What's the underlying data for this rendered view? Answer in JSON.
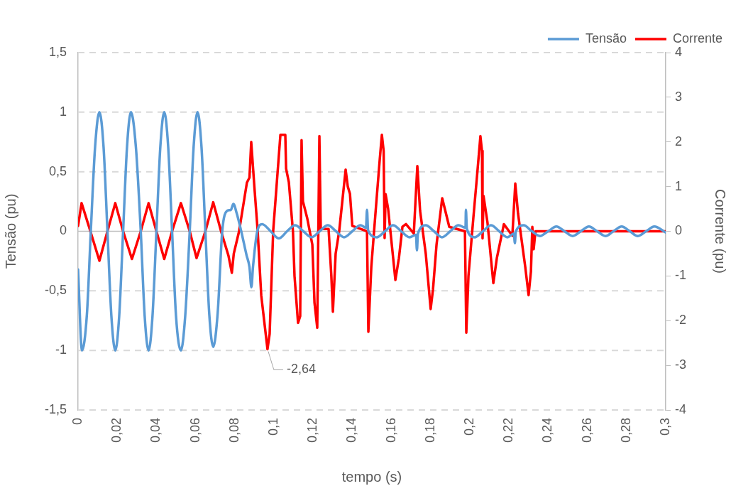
{
  "chart_data": {
    "type": "line",
    "xlabel": "tempo (s)",
    "ylabel": "Tensão (pu)",
    "y2label": "Corrente (pu)",
    "xlim": [
      0,
      0.3
    ],
    "xticks": [
      0,
      {
        "value": 0.02,
        "label": "0,02"
      },
      {
        "value": 0.04,
        "label": "0,04"
      },
      {
        "value": 0.06,
        "label": "0,06"
      },
      {
        "value": 0.08,
        "label": "0,08"
      },
      {
        "value": 0.1,
        "label": "0,1"
      },
      {
        "value": 0.12,
        "label": "0,12"
      },
      {
        "value": 0.14,
        "label": "0,14"
      },
      {
        "value": 0.16,
        "label": "0,16"
      },
      {
        "value": 0.18,
        "label": "0,18"
      },
      {
        "value": 0.2,
        "label": "0,2"
      },
      {
        "value": 0.22,
        "label": "0,22"
      },
      {
        "value": 0.24,
        "label": "0,24"
      },
      {
        "value": 0.26,
        "label": "0,26"
      },
      {
        "value": 0.28,
        "label": "0,28"
      },
      {
        "value": 0.3,
        "label": "0,3"
      }
    ],
    "ylim": [
      -1.5,
      1.5
    ],
    "yticks": [
      {
        "value": -1.5,
        "label": "-1,5"
      },
      -1,
      {
        "value": -0.5,
        "label": "-0,5"
      },
      0,
      {
        "value": 0.5,
        "label": "0,5"
      },
      1,
      {
        "value": 1.5,
        "label": "1,5"
      }
    ],
    "y2lim": [
      -4,
      4
    ],
    "y2ticks": [
      -4,
      -3,
      -2,
      -1,
      0,
      1,
      2,
      3,
      4
    ],
    "grid": "y",
    "legend": "top right",
    "marker": "none",
    "line_style": "solid",
    "series": [
      {
        "name": "Tensão",
        "color": "#5b9bd5",
        "x": [
          0,
          0.002,
          0.0045,
          0.0065,
          0.0087,
          0.0109,
          0.013,
          0.015,
          0.017,
          0.019,
          0.021,
          0.023,
          0.025,
          0.027,
          0.0295,
          0.032,
          0.034,
          0.036,
          0.038,
          0.04,
          0.042,
          0.044,
          0.046,
          0.048,
          0.05,
          0.0525,
          0.0547,
          0.057,
          0.059,
          0.061,
          0.063,
          0.065,
          0.067,
          0.069,
          0.0713,
          0.0736,
          0.076,
          0.078,
          0.0793,
          0.081,
          0.0833,
          0.086,
          0.0875,
          0.0885,
          0.0893,
          0.0915,
          0.094,
          0.0983,
          0.1025,
          0.1067,
          0.1108,
          0.115,
          0.1192,
          0.1233,
          0.1275,
          0.1317,
          0.1358,
          0.14,
          0.1442,
          0.147,
          0.1475,
          0.148,
          0.1483,
          0.1525,
          0.1567,
          0.1608,
          0.165,
          0.1692,
          0.1725,
          0.173,
          0.1735,
          0.1775,
          0.1817,
          0.1858,
          0.19,
          0.1942,
          0.1978,
          0.198,
          0.1985,
          0.2025,
          0.2067,
          0.2108,
          0.215,
          0.2192,
          0.2225,
          0.223,
          0.2235,
          0.2275,
          0.2317,
          0.2358,
          0.24,
          0.2442,
          0.2483,
          0.2525,
          0.2567,
          0.2608,
          0.265,
          0.2692,
          0.2733,
          0.2775,
          0.2817,
          0.2858,
          0.29,
          0.2942,
          0.3
        ],
        "values": [
          -0.32,
          -1.0,
          -0.7,
          0,
          0.71,
          1.0,
          0.71,
          0,
          -0.71,
          -1.0,
          -0.71,
          0,
          0.71,
          1.0,
          0.71,
          0,
          -0.71,
          -1.0,
          -0.71,
          0,
          0.71,
          1.0,
          0.71,
          0,
          -0.71,
          -1.0,
          -0.71,
          0,
          0.71,
          1.0,
          0.71,
          0,
          -0.7,
          -0.97,
          -0.68,
          0,
          0.17,
          0.18,
          0.23,
          0.15,
          0,
          -0.2,
          -0.3,
          -0.47,
          -0.3,
          0,
          0.06,
          0,
          -0.06,
          0,
          0.05,
          0,
          -0.05,
          0,
          0.05,
          0,
          -0.05,
          0,
          0.05,
          0.03,
          0.18,
          0.02,
          0,
          -0.05,
          0,
          0.05,
          0,
          -0.05,
          -0.03,
          -0.16,
          -0.02,
          0.05,
          0,
          -0.05,
          0,
          0.05,
          0.03,
          0.18,
          0.02,
          -0.05,
          0,
          0.05,
          0,
          -0.05,
          -0.02,
          -0.1,
          0,
          0.05,
          0,
          -0.04,
          0,
          0.04,
          0,
          -0.04,
          0,
          0.04,
          0,
          -0.04,
          0,
          0.04,
          0,
          -0.04,
          0,
          0.04,
          -0.01
        ]
      },
      {
        "name": "Corrente",
        "color": "#ff0000",
        "axis": "y2",
        "x": [
          0,
          0.0018,
          0.0063,
          0.0109,
          0.015,
          0.019,
          0.023,
          0.0275,
          0.032,
          0.036,
          0.04,
          0.044,
          0.048,
          0.0525,
          0.057,
          0.0605,
          0.065,
          0.069,
          0.073,
          0.0768,
          0.0785,
          0.0795,
          0.0822,
          0.0862,
          0.0875,
          0.0884,
          0.09,
          0.0917,
          0.0935,
          0.095,
          0.0967,
          0.0978,
          0.0996,
          0.1033,
          0.1058,
          0.1062,
          0.1076,
          0.1097,
          0.1105,
          0.1123,
          0.1134,
          0.1141,
          0.1148,
          0.117,
          0.1196,
          0.1207,
          0.1221,
          0.1232,
          0.1239,
          0.1279,
          0.1293,
          0.1301,
          0.1315,
          0.1333,
          0.1366,
          0.1377,
          0.1388,
          0.14,
          0.1475,
          0.1482,
          0.1497,
          0.152,
          0.154,
          0.1551,
          0.156,
          0.1565,
          0.157,
          0.1583,
          0.162,
          0.1638,
          0.1656,
          0.1674,
          0.1714,
          0.1732,
          0.1746,
          0.1775,
          0.18,
          0.1812,
          0.183,
          0.1859,
          0.1895,
          0.1975,
          0.1982,
          0.1993,
          0.2018,
          0.204,
          0.2054,
          0.2062,
          0.2065,
          0.207,
          0.209,
          0.212,
          0.2138,
          0.2174,
          0.2217,
          0.2232,
          0.2246,
          0.2283,
          0.23,
          0.2312,
          0.2319,
          0.2326,
          0.2335,
          0.26,
          0.3
        ],
        "values": [
          0.12,
          0.63,
          0,
          -0.66,
          0,
          0.63,
          0,
          -0.62,
          0,
          0.63,
          0,
          -0.62,
          0,
          0.63,
          0,
          -0.6,
          0,
          0.65,
          0,
          -0.55,
          -0.93,
          -0.5,
          0,
          1.09,
          1.2,
          2.0,
          1.0,
          0,
          -1.43,
          -2.0,
          -2.64,
          -2.3,
          0,
          2.16,
          2.16,
          1.4,
          1.1,
          0,
          -1.0,
          -2.05,
          -1.9,
          2.04,
          0.67,
          0.29,
          -0.3,
          -1.6,
          -2.16,
          2.13,
          0.05,
          0.05,
          -1.0,
          -1.8,
          -0.5,
          0,
          1.38,
          1.0,
          0.84,
          0.12,
          0,
          -2.25,
          -0.8,
          0.5,
          1.6,
          2.16,
          1.8,
          -0.15,
          0.83,
          0.5,
          -1.09,
          -0.6,
          0.1,
          0.16,
          -0.05,
          1.46,
          0.46,
          -0.5,
          -1.74,
          -1.3,
          -0.3,
          0.74,
          0.1,
          0,
          -2.27,
          -1.0,
          0.3,
          1.4,
          2.13,
          1.8,
          -0.16,
          0.79,
          0.2,
          -1.16,
          -0.6,
          0.16,
          -0.1,
          1.07,
          0.4,
          -0.8,
          -1.43,
          -0.9,
          0.1,
          -0.4,
          0,
          0,
          0
        ],
        "value_labels": [
          null,
          null,
          null,
          null,
          null,
          null,
          null,
          null,
          null,
          null,
          null,
          null,
          null,
          null,
          null,
          null,
          null,
          null,
          null,
          null,
          null,
          null,
          null,
          null,
          null,
          null,
          null,
          null,
          null,
          null,
          "-2,64",
          null,
          null,
          null,
          null,
          null,
          null,
          null,
          null,
          null,
          null,
          null,
          null,
          null,
          null,
          null,
          null,
          null,
          null,
          null,
          null,
          null,
          null,
          null,
          null,
          null,
          null,
          null,
          null,
          null,
          null,
          null,
          null,
          null,
          null,
          null,
          null,
          null,
          null,
          null,
          null,
          null,
          null,
          null,
          null,
          null,
          null,
          null,
          null,
          null,
          null,
          null,
          null,
          null,
          null,
          null,
          null,
          null,
          null,
          null,
          null,
          null,
          null,
          null,
          null,
          null,
          null,
          null,
          null,
          null,
          null,
          null,
          null,
          null,
          null
        ]
      }
    ]
  }
}
